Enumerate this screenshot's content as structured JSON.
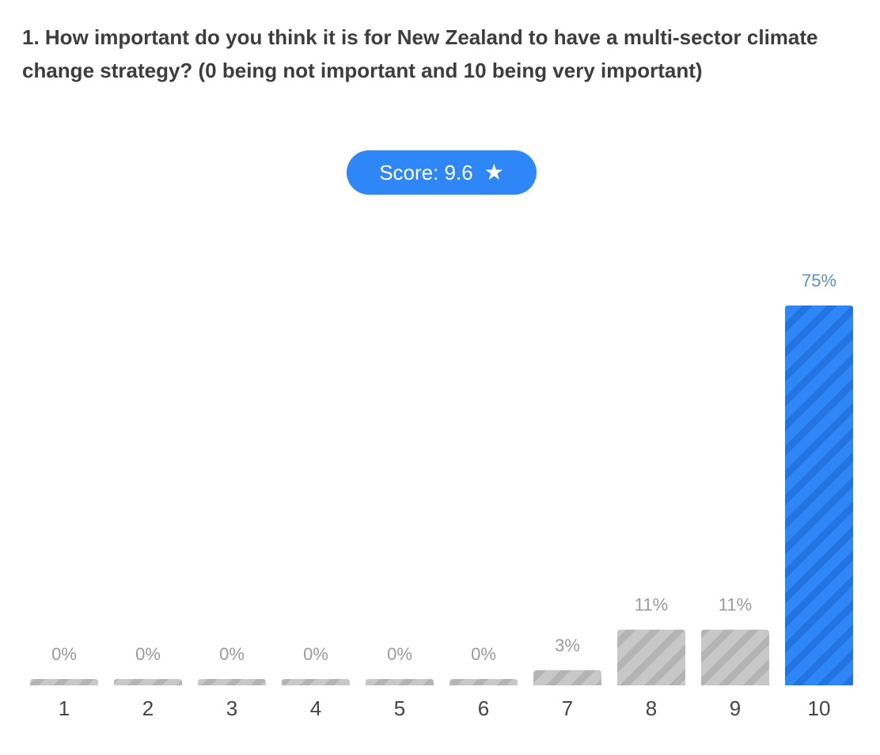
{
  "question": {
    "title": "1. How important do you think it is for New Zealand to have a multi-sector climate change strategy? (0 being not important and 10 being very important)"
  },
  "score": {
    "label": "Score: 9.6",
    "icon": "star-icon"
  },
  "colors": {
    "highlight": "#2f86f6",
    "highlight_stripe": "#2374e0",
    "muted": "#c8c8c8",
    "muted_stripe": "#b4b4b4",
    "label_muted": "#9a9a9a",
    "label_highlight": "#5b8fbd",
    "axis_text": "#444444"
  },
  "chart_data": {
    "type": "bar",
    "categories": [
      "1",
      "2",
      "3",
      "4",
      "5",
      "6",
      "7",
      "8",
      "9",
      "10"
    ],
    "values": [
      0,
      0,
      0,
      0,
      0,
      0,
      3,
      11,
      11,
      75
    ],
    "data_labels": [
      "0%",
      "0%",
      "0%",
      "0%",
      "0%",
      "0%",
      "3%",
      "11%",
      "11%",
      "75%"
    ],
    "unit": "%",
    "highlighted_category": "10",
    "ylim": [
      0,
      75
    ]
  }
}
